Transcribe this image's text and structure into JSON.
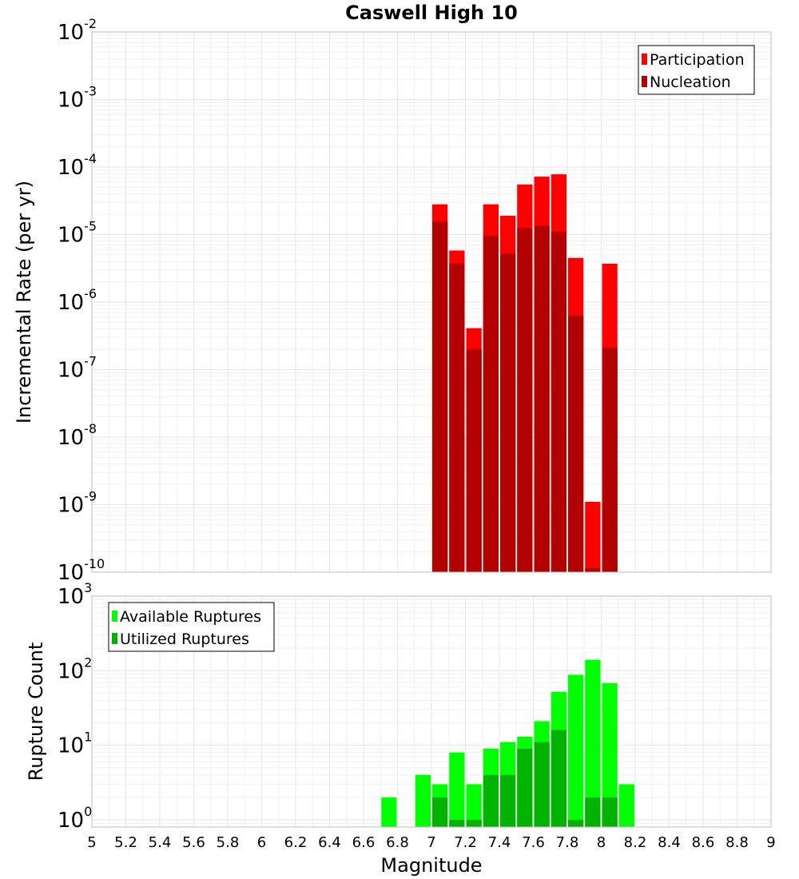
{
  "chart_data": {
    "title": "Caswell High 10",
    "xlabel": "Magnitude",
    "xlim": [
      5,
      9
    ],
    "xticks": [
      "5",
      "5.2",
      "5.4",
      "5.6",
      "5.8",
      "6",
      "6.2",
      "6.4",
      "6.6",
      "6.8",
      "7",
      "7.2",
      "7.4",
      "7.6",
      "7.8",
      "8",
      "8.2",
      "8.4",
      "8.6",
      "8.8",
      "9"
    ],
    "bin_width": 0.1,
    "grid": true,
    "panels": [
      {
        "type": "bar",
        "ylabel": "Incremental Rate (per yr)",
        "yscale": "log",
        "ylim": [
          1e-10,
          0.01
        ],
        "yticks": [
          {
            "base": "10",
            "exp": "-10"
          },
          {
            "base": "10",
            "exp": "-9"
          },
          {
            "base": "10",
            "exp": "-8"
          },
          {
            "base": "10",
            "exp": "-7"
          },
          {
            "base": "10",
            "exp": "-6"
          },
          {
            "base": "10",
            "exp": "-5"
          },
          {
            "base": "10",
            "exp": "-4"
          },
          {
            "base": "10",
            "exp": "-3"
          },
          {
            "base": "10",
            "exp": "-2"
          }
        ],
        "legend_position": "top-right",
        "series": [
          {
            "name": "Participation",
            "color": "#ff0000",
            "x": [
              7.05,
              7.15,
              7.25,
              7.35,
              7.45,
              7.55,
              7.65,
              7.75,
              7.85,
              7.95,
              8.05
            ],
            "values": [
              2.8e-05,
              5.8e-06,
              4.1e-07,
              2.8e-05,
              1.9e-05,
              5.5e-05,
              7.2e-05,
              7.8e-05,
              4.5e-06,
              1.1e-09,
              3.7e-06
            ]
          },
          {
            "name": "Nucleation",
            "color": "#b30000",
            "x": [
              7.05,
              7.15,
              7.25,
              7.35,
              7.45,
              7.55,
              7.65,
              7.75,
              7.85,
              7.95,
              8.05
            ],
            "values": [
              1.55e-05,
              3.7e-06,
              2e-07,
              9.5e-06,
              5.2e-06,
              1.25e-05,
              1.35e-05,
              1.1e-05,
              6.3e-07,
              1.15e-10,
              2.1e-07
            ]
          }
        ]
      },
      {
        "type": "bar",
        "ylabel": "Rupture Count",
        "yscale": "log",
        "ylim": [
          0.8,
          1000
        ],
        "yticks": [
          {
            "base": "10",
            "exp": "0"
          },
          {
            "base": "10",
            "exp": "1"
          },
          {
            "base": "10",
            "exp": "2"
          },
          {
            "base": "10",
            "exp": "3"
          }
        ],
        "legend_position": "top-left",
        "series": [
          {
            "name": "Available Ruptures",
            "color": "#00ff00",
            "x": [
              6.75,
              6.95,
              7.05,
              7.15,
              7.25,
              7.35,
              7.45,
              7.55,
              7.65,
              7.75,
              7.85,
              7.95,
              8.05,
              8.15
            ],
            "values": [
              2,
              4,
              3,
              8,
              3,
              9,
              11,
              13,
              21,
              52,
              88,
              140,
              68,
              3
            ]
          },
          {
            "name": "Utilized Ruptures",
            "color": "#00b300",
            "x": [
              7.05,
              7.15,
              7.25,
              7.35,
              7.45,
              7.55,
              7.65,
              7.75,
              7.85,
              7.95,
              8.05
            ],
            "values": [
              2,
              1,
              1,
              4,
              4,
              9,
              11,
              16,
              1,
              2,
              2
            ]
          }
        ]
      }
    ]
  }
}
